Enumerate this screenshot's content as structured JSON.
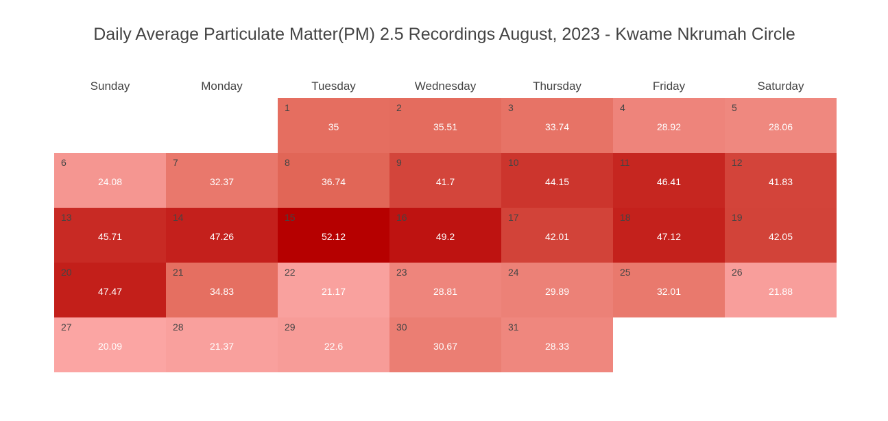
{
  "chart_data": {
    "type": "heatmap",
    "title": "Daily Average Particulate Matter(PM) 2.5 Recordings August, 2023 - Kwame Nkrumah Circle",
    "weekdays": [
      "Sunday",
      "Monday",
      "Tuesday",
      "Wednesday",
      "Thursday",
      "Friday",
      "Saturday"
    ],
    "first_weekday_index": 2,
    "days": [
      1,
      2,
      3,
      4,
      5,
      6,
      7,
      8,
      9,
      10,
      11,
      12,
      13,
      14,
      15,
      16,
      17,
      18,
      19,
      20,
      21,
      22,
      23,
      24,
      25,
      26,
      27,
      28,
      29,
      30,
      31
    ],
    "values": [
      35,
      35.51,
      33.74,
      28.92,
      28.06,
      24.08,
      32.37,
      36.74,
      41.7,
      44.15,
      46.41,
      41.83,
      45.71,
      47.26,
      52.12,
      49.2,
      42.01,
      47.12,
      42.05,
      47.47,
      34.83,
      21.17,
      28.81,
      29.89,
      32.01,
      21.88,
      20.09,
      21.37,
      22.6,
      30.67,
      28.33
    ],
    "color_scale": {
      "low": "#fba5a3",
      "mid": "#e36a5b",
      "high": "#b60000"
    }
  }
}
